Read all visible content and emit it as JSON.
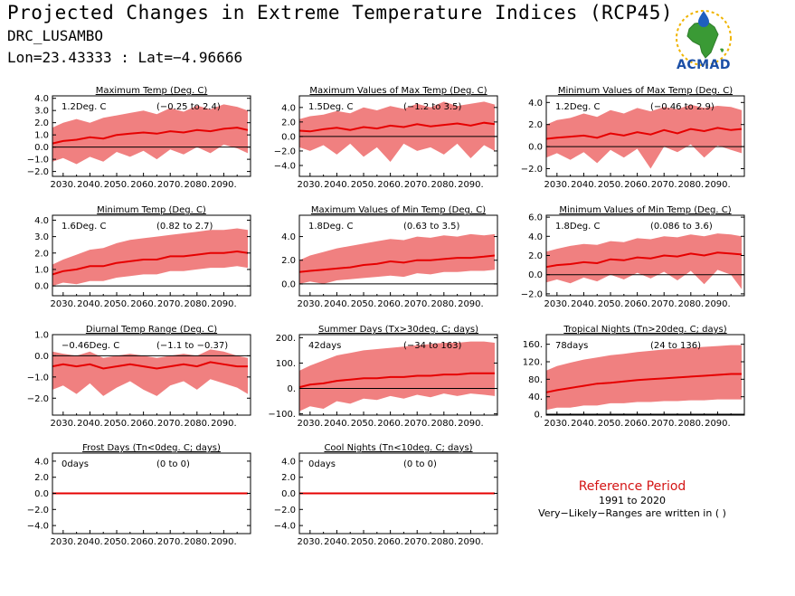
{
  "header": {
    "title": "Projected Changes in Extreme Temperature Indices (RCP45)",
    "station": "DRC_LUSAMBO",
    "coords": "Lon=23.43333 : Lat=−4.96666"
  },
  "logo": {
    "text": "ACMAD",
    "icon": "africa-map-with-drop-logo"
  },
  "reference": {
    "title": "Reference Period",
    "years": "1991 to 2020",
    "note": "Very−Likely−Ranges are written in ( )"
  },
  "colors": {
    "band": "#f08080",
    "line": "#e60000",
    "zero": "#000000",
    "ref_title": "#d41515"
  },
  "chart_data": [
    {
      "type": "area",
      "title": "Maximum Temp (Deg. C)",
      "value_label": "1.2Deg. C",
      "range_label": "(−0.25 to 2.4)",
      "xticks": [
        "2030.",
        "2040.",
        "2050.",
        "2060.",
        "2070.",
        "2080.",
        "2090."
      ],
      "yticks": [
        "−2.0",
        "−1.0",
        "0.0",
        "1.0",
        "2.0",
        "3.0",
        "4.0"
      ],
      "ylim": [
        -2.4,
        4.2
      ],
      "ytick_values": [
        -2,
        -1,
        0,
        1,
        2,
        3,
        4
      ],
      "x": [
        2026,
        2030,
        2035,
        2040,
        2045,
        2050,
        2055,
        2060,
        2065,
        2070,
        2075,
        2080,
        2085,
        2090,
        2095,
        2099
      ],
      "median": [
        0.3,
        0.5,
        0.6,
        0.8,
        0.7,
        1.0,
        1.1,
        1.2,
        1.1,
        1.3,
        1.2,
        1.4,
        1.3,
        1.5,
        1.6,
        1.4
      ],
      "lower": [
        -1.2,
        -0.9,
        -1.4,
        -0.8,
        -1.2,
        -0.4,
        -0.8,
        -0.3,
        -1.0,
        -0.2,
        -0.6,
        0.0,
        -0.5,
        0.2,
        -0.1,
        -0.5
      ],
      "upper": [
        1.6,
        2.0,
        2.3,
        2.0,
        2.4,
        2.6,
        2.8,
        3.0,
        2.7,
        3.2,
        2.9,
        3.4,
        3.1,
        3.5,
        3.3,
        3.0
      ]
    },
    {
      "type": "area",
      "title": "Maximum Values of Max Temp (Deg. C)",
      "value_label": "1.5Deg. C",
      "range_label": "(−1.2 to 3.5)",
      "xticks": [
        "2030.",
        "2040.",
        "2050.",
        "2060.",
        "2070.",
        "2080.",
        "2090."
      ],
      "yticks": [
        "−4.0",
        "−2.0",
        "0.0",
        "2.0",
        "4.0"
      ],
      "ylim": [
        -5.5,
        5.6
      ],
      "ytick_values": [
        -4,
        -2,
        0,
        2,
        4
      ],
      "x": [
        2026,
        2030,
        2035,
        2040,
        2045,
        2050,
        2055,
        2060,
        2065,
        2070,
        2075,
        2080,
        2085,
        2090,
        2095,
        2099
      ],
      "median": [
        0.8,
        0.7,
        1.0,
        1.2,
        0.9,
        1.3,
        1.1,
        1.5,
        1.3,
        1.7,
        1.4,
        1.6,
        1.8,
        1.5,
        1.9,
        1.7
      ],
      "lower": [
        -1.5,
        -2.0,
        -1.2,
        -2.5,
        -1.0,
        -2.8,
        -1.5,
        -3.5,
        -1.0,
        -2.0,
        -1.5,
        -2.5,
        -1.0,
        -3.0,
        -1.2,
        -2.0
      ],
      "upper": [
        2.4,
        2.8,
        3.0,
        3.5,
        3.2,
        4.0,
        3.6,
        4.2,
        3.8,
        4.5,
        4.0,
        4.8,
        4.2,
        4.5,
        4.8,
        4.4
      ]
    },
    {
      "type": "area",
      "title": "Minimum Values of Max Temp (Deg. C)",
      "value_label": "1.2Deg. C",
      "range_label": "(−0.46 to 2.9)",
      "xticks": [
        "2030.",
        "2040.",
        "2050.",
        "2060.",
        "2070.",
        "2080.",
        "2090."
      ],
      "yticks": [
        "−2.0",
        "0.0",
        "2.0",
        "4.0"
      ],
      "ylim": [
        -2.7,
        4.6
      ],
      "ytick_values": [
        -2,
        0,
        2,
        4
      ],
      "x": [
        2026,
        2030,
        2035,
        2040,
        2045,
        2050,
        2055,
        2060,
        2065,
        2070,
        2075,
        2080,
        2085,
        2090,
        2095,
        2099
      ],
      "median": [
        0.7,
        0.8,
        0.9,
        1.0,
        0.8,
        1.2,
        1.0,
        1.3,
        1.1,
        1.5,
        1.2,
        1.6,
        1.4,
        1.7,
        1.5,
        1.6
      ],
      "lower": [
        -1.0,
        -0.6,
        -1.2,
        -0.5,
        -1.5,
        -0.3,
        -1.0,
        -0.2,
        -2.0,
        0.0,
        -0.5,
        0.2,
        -1.0,
        0.1,
        -0.3,
        -0.6
      ],
      "upper": [
        2.0,
        2.4,
        2.6,
        3.0,
        2.7,
        3.3,
        3.0,
        3.5,
        3.2,
        3.6,
        3.4,
        3.8,
        3.5,
        3.7,
        3.6,
        3.3
      ]
    },
    {
      "type": "area",
      "title": "Minimum Temp (Deg. C)",
      "value_label": "1.6Deg. C",
      "range_label": "(0.82 to 2.7)",
      "xticks": [
        "2030.",
        "2040.",
        "2050.",
        "2060.",
        "2070.",
        "2080.",
        "2090."
      ],
      "yticks": [
        "0.0",
        "1.0",
        "2.0",
        "3.0",
        "4.0"
      ],
      "ylim": [
        -0.6,
        4.3
      ],
      "ytick_values": [
        0,
        1,
        2,
        3,
        4
      ],
      "x": [
        2026,
        2030,
        2035,
        2040,
        2045,
        2050,
        2055,
        2060,
        2065,
        2070,
        2075,
        2080,
        2085,
        2090,
        2095,
        2099
      ],
      "median": [
        0.7,
        0.9,
        1.0,
        1.2,
        1.2,
        1.4,
        1.5,
        1.6,
        1.6,
        1.8,
        1.8,
        1.9,
        2.0,
        2.0,
        2.1,
        2.0
      ],
      "lower": [
        0.0,
        0.2,
        0.1,
        0.3,
        0.3,
        0.5,
        0.6,
        0.7,
        0.7,
        0.9,
        0.9,
        1.0,
        1.1,
        1.1,
        1.2,
        1.1
      ],
      "upper": [
        1.3,
        1.6,
        1.9,
        2.2,
        2.3,
        2.6,
        2.8,
        2.9,
        3.0,
        3.1,
        3.2,
        3.3,
        3.4,
        3.4,
        3.5,
        3.4
      ]
    },
    {
      "type": "area",
      "title": "Maximum Values of Min Temp (Deg. C)",
      "value_label": "1.8Deg. C",
      "range_label": "(0.63 to 3.5)",
      "xticks": [
        "2030.",
        "2040.",
        "2050.",
        "2060.",
        "2070.",
        "2080.",
        "2090."
      ],
      "yticks": [
        "0.0",
        "2.0",
        "4.0"
      ],
      "ylim": [
        -1.0,
        5.8
      ],
      "ytick_values": [
        0,
        2,
        4
      ],
      "x": [
        2026,
        2030,
        2035,
        2040,
        2045,
        2050,
        2055,
        2060,
        2065,
        2070,
        2075,
        2080,
        2085,
        2090,
        2095,
        2099
      ],
      "median": [
        1.0,
        1.1,
        1.2,
        1.3,
        1.4,
        1.6,
        1.7,
        1.9,
        1.8,
        2.0,
        2.0,
        2.1,
        2.2,
        2.2,
        2.3,
        2.4
      ],
      "lower": [
        0.0,
        0.2,
        0.0,
        0.3,
        0.4,
        0.5,
        0.6,
        0.7,
        0.6,
        0.9,
        0.8,
        1.0,
        1.0,
        1.1,
        1.1,
        1.2
      ],
      "upper": [
        2.0,
        2.4,
        2.7,
        3.0,
        3.2,
        3.4,
        3.6,
        3.8,
        3.7,
        4.0,
        3.9,
        4.1,
        4.0,
        4.2,
        4.1,
        4.2
      ]
    },
    {
      "type": "area",
      "title": "Minimum Values of Min Temp (Deg. C)",
      "value_label": "1.8Deg. C",
      "range_label": "(0.086 to 3.6)",
      "xticks": [
        "2030.",
        "2040.",
        "2050.",
        "2060.",
        "2070.",
        "2080.",
        "2090."
      ],
      "yticks": [
        "−2.0",
        "0.0",
        "2.0",
        "4.0",
        "6.0"
      ],
      "ylim": [
        -2.2,
        6.2
      ],
      "ytick_values": [
        -2,
        0,
        2,
        4,
        6
      ],
      "x": [
        2026,
        2030,
        2035,
        2040,
        2045,
        2050,
        2055,
        2060,
        2065,
        2070,
        2075,
        2080,
        2085,
        2090,
        2095,
        2099
      ],
      "median": [
        0.8,
        1.0,
        1.1,
        1.3,
        1.2,
        1.6,
        1.5,
        1.8,
        1.7,
        2.0,
        1.9,
        2.2,
        2.0,
        2.3,
        2.2,
        2.1
      ],
      "lower": [
        -0.8,
        -0.5,
        -0.9,
        -0.3,
        -0.7,
        0.0,
        -0.5,
        0.2,
        -0.4,
        0.3,
        -0.6,
        0.4,
        -1.0,
        0.5,
        0.0,
        -1.5
      ],
      "upper": [
        2.4,
        2.7,
        3.0,
        3.2,
        3.1,
        3.5,
        3.4,
        3.8,
        3.7,
        4.0,
        3.9,
        4.2,
        4.0,
        4.3,
        4.2,
        4.0
      ]
    },
    {
      "type": "area",
      "title": "Diurnal Temp Range (Deg. C)",
      "value_label": "−0.46Deg. C",
      "range_label": "(−1.1 to −0.37)",
      "xticks": [
        "2030.",
        "2040.",
        "2050.",
        "2060.",
        "2070.",
        "2080.",
        "2090."
      ],
      "yticks": [
        "−2.0",
        "−1.0",
        "0.0",
        "1.0"
      ],
      "ylim": [
        -2.8,
        1.0
      ],
      "ytick_values": [
        -2,
        -1,
        0,
        1
      ],
      "x": [
        2026,
        2030,
        2035,
        2040,
        2045,
        2050,
        2055,
        2060,
        2065,
        2070,
        2075,
        2080,
        2085,
        2090,
        2095,
        2099
      ],
      "median": [
        -0.5,
        -0.4,
        -0.5,
        -0.4,
        -0.6,
        -0.5,
        -0.4,
        -0.5,
        -0.6,
        -0.5,
        -0.4,
        -0.5,
        -0.3,
        -0.4,
        -0.5,
        -0.5
      ],
      "lower": [
        -1.6,
        -1.4,
        -1.8,
        -1.3,
        -1.9,
        -1.5,
        -1.2,
        -1.6,
        -1.9,
        -1.4,
        -1.2,
        -1.6,
        -1.1,
        -1.3,
        -1.5,
        -1.8
      ],
      "upper": [
        0.2,
        0.1,
        0.0,
        0.2,
        -0.1,
        0.0,
        0.1,
        0.0,
        -0.1,
        0.0,
        0.1,
        0.0,
        0.3,
        0.2,
        0.0,
        -0.1
      ]
    },
    {
      "type": "area",
      "title": "Summer Days (Tx>30deg. C; days)",
      "value_label": "42days",
      "range_label": "(−34 to 163)",
      "xticks": [
        "2030.",
        "2040.",
        "2050.",
        "2060.",
        "2070.",
        "2080.",
        "2090."
      ],
      "yticks": [
        "−100.",
        "0.",
        "100.",
        "200."
      ],
      "ylim": [
        -105,
        212
      ],
      "ytick_values": [
        -100,
        0,
        100,
        200
      ],
      "x": [
        2026,
        2030,
        2035,
        2040,
        2045,
        2050,
        2055,
        2060,
        2065,
        2070,
        2075,
        2080,
        2085,
        2090,
        2095,
        2099
      ],
      "median": [
        5,
        15,
        20,
        30,
        35,
        40,
        40,
        45,
        45,
        50,
        50,
        55,
        55,
        60,
        60,
        60
      ],
      "lower": [
        -90,
        -70,
        -80,
        -50,
        -60,
        -40,
        -45,
        -30,
        -40,
        -25,
        -35,
        -20,
        -30,
        -20,
        -25,
        -30
      ],
      "upper": [
        70,
        90,
        110,
        130,
        140,
        150,
        155,
        160,
        165,
        170,
        175,
        180,
        180,
        185,
        185,
        180
      ]
    },
    {
      "type": "area",
      "title": "Tropical Nights (Tn>20deg. C; days)",
      "value_label": "78days",
      "range_label": "(24 to 136)",
      "xticks": [
        "2030.",
        "2040.",
        "2050.",
        "2060.",
        "2070.",
        "2080.",
        "2090."
      ],
      "yticks": [
        "0.",
        "40.",
        "80.",
        "120.",
        "160."
      ],
      "ylim": [
        -2,
        182
      ],
      "ytick_values": [
        0,
        40,
        80,
        120,
        160
      ],
      "x": [
        2026,
        2030,
        2035,
        2040,
        2045,
        2050,
        2055,
        2060,
        2065,
        2070,
        2075,
        2080,
        2085,
        2090,
        2095,
        2099
      ],
      "median": [
        50,
        55,
        60,
        65,
        70,
        72,
        75,
        78,
        80,
        82,
        84,
        86,
        88,
        90,
        92,
        92
      ],
      "lower": [
        10,
        15,
        15,
        20,
        20,
        25,
        25,
        28,
        28,
        30,
        30,
        32,
        32,
        34,
        34,
        34
      ],
      "upper": [
        100,
        110,
        118,
        125,
        130,
        135,
        138,
        142,
        145,
        148,
        150,
        152,
        154,
        156,
        158,
        158
      ]
    },
    {
      "type": "area",
      "title": "Frost Days (Tn<0deg. C; days)",
      "value_label": "0days",
      "range_label": "(0 to 0)",
      "xticks": [
        "2030.",
        "2040.",
        "2050.",
        "2060.",
        "2070.",
        "2080.",
        "2090."
      ],
      "yticks": [
        "−4.0",
        "−2.0",
        "0.0",
        "2.0",
        "4.0"
      ],
      "ylim": [
        -5.0,
        5.0
      ],
      "ytick_values": [
        -4,
        -2,
        0,
        2,
        4
      ],
      "x": [
        2026,
        2099
      ],
      "median": [
        0,
        0
      ],
      "lower": [
        0,
        0
      ],
      "upper": [
        0,
        0
      ]
    },
    {
      "type": "area",
      "title": "Cool Nights (Tn<10deg. C; days)",
      "value_label": "0days",
      "range_label": "(0 to 0)",
      "xticks": [
        "2030.",
        "2040.",
        "2050.",
        "2060.",
        "2070.",
        "2080.",
        "2090."
      ],
      "yticks": [
        "−4.0",
        "−2.0",
        "0.0",
        "2.0",
        "4.0"
      ],
      "ylim": [
        -5.0,
        5.0
      ],
      "ytick_values": [
        -4,
        -2,
        0,
        2,
        4
      ],
      "x": [
        2026,
        2099
      ],
      "median": [
        0,
        0
      ],
      "lower": [
        0,
        0
      ],
      "upper": [
        0,
        0
      ]
    }
  ]
}
